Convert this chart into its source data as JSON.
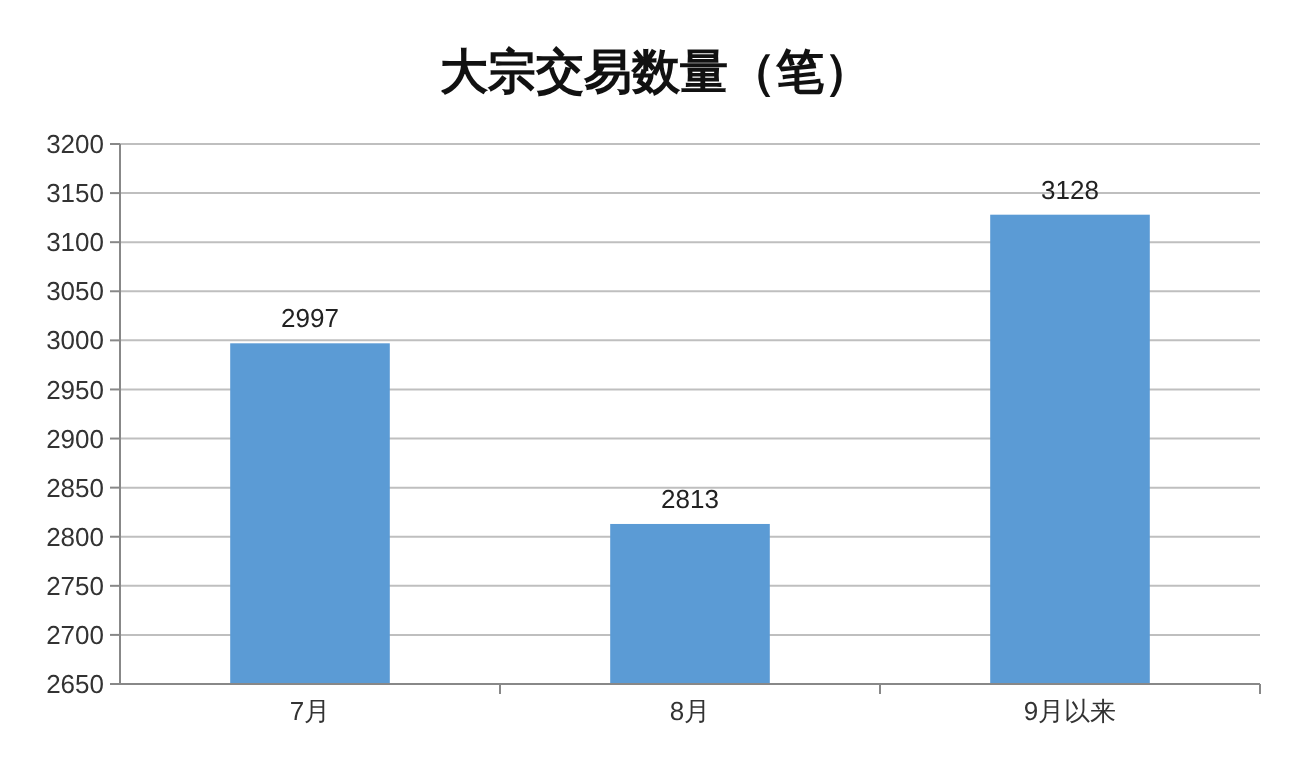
{
  "chart_data": {
    "type": "bar",
    "title": "大宗交易数量（笔）",
    "categories": [
      "7月",
      "8月",
      "9月以来"
    ],
    "values": [
      2997,
      2813,
      3128
    ],
    "color": "#5b9bd5",
    "ylim": [
      2650,
      3200
    ],
    "yticks": [
      2650,
      2700,
      2750,
      2800,
      2850,
      2900,
      2950,
      3000,
      3050,
      3100,
      3150,
      3200
    ],
    "grid": "y",
    "data_labels": true
  }
}
